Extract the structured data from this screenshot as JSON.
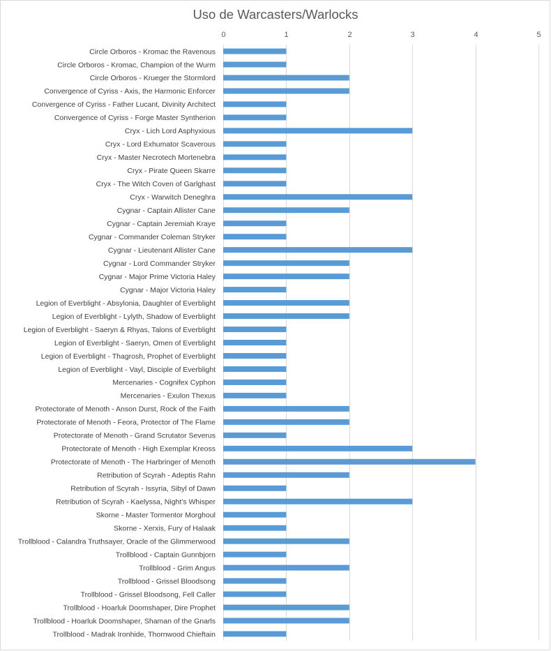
{
  "chart_data": {
    "type": "bar",
    "orientation": "horizontal",
    "title": "Uso de Warcasters/Warlocks",
    "xlabel": "",
    "ylabel": "",
    "xlim": [
      0,
      5
    ],
    "xticks": [
      "0",
      "1",
      "2",
      "3",
      "4",
      "5"
    ],
    "grid": true,
    "color": "#5b9bd5",
    "categories": [
      "Circle Orboros - Kromac the Ravenous",
      "Circle Orboros - Kromac, Champion of the Wurm",
      "Circle Orboros - Krueger the Stormlord",
      "Convergence of Cyriss - Axis, the Harmonic Enforcer",
      "Convergence of Cyriss - Father Lucant, Divinity Architect",
      "Convergence of Cyriss - Forge Master Syntherion",
      "Cryx - Lich Lord Asphyxious",
      "Cryx - Lord Exhumator Scaverous",
      "Cryx - Master Necrotech Mortenebra",
      "Cryx - Pirate Queen Skarre",
      "Cryx - The Witch Coven of Garlghast",
      "Cryx - Warwitch Deneghra",
      "Cygnar - Captain Allister Cane",
      "Cygnar - Captain Jeremiah Kraye",
      "Cygnar - Commander Coleman Stryker",
      "Cygnar - Lieutenant Allister Cane",
      "Cygnar - Lord Commander Stryker",
      "Cygnar - Major Prime Victoria Haley",
      "Cygnar - Major Victoria Haley",
      "Legion of Everblight - Absylonia, Daughter of Everblight",
      "Legion of Everblight - Lylyth, Shadow of Everblight",
      "Legion of Everblight - Saeryn & Rhyas, Talons of Everblight",
      "Legion of Everblight - Saeryn, Omen of Everblight",
      "Legion of Everblight - Thagrosh, Prophet of Everblight",
      "Legion of Everblight - Vayl, Disciple of Everblight",
      "Mercenaries - Cognifex Cyphon",
      "Mercenaries - Exulon Thexus",
      "Protectorate of Menoth - Anson Durst, Rock of the Faith",
      "Protectorate of Menoth - Feora, Protector of The Flame",
      "Protectorate of Menoth - Grand Scrutator Severus",
      "Protectorate of Menoth - High Exemplar Kreoss",
      "Protectorate of Menoth - The Harbringer of Menoth",
      "Retribution of Scyrah - Adeptis Rahn",
      "Retribution of Scyrah - Issyria, Sibyl of Dawn",
      "Retribution of Scyrah - Kaelyssa, Night's Whisper",
      "Skorne - Master Tormentor Morghoul",
      "Skorne - Xerxis, Fury of Halaak",
      "Trollblood - Calandra Truthsayer, Oracle of the Glimmerwood",
      "Trollblood - Captain Gunnbjorn",
      "Trollblood - Grim Angus",
      "Trollblood - Grissel Bloodsong",
      "Trollblood - Grissel Bloodsong, Fell Caller",
      "Trollblood - Hoarluk Doomshaper, Dire Prophet",
      "Trollblood - Hoarluk Doomshaper, Shaman of the Gnarls",
      "Trollblood - Madrak Ironhide, Thornwood Chieftain"
    ],
    "values": [
      1,
      1,
      2,
      2,
      1,
      1,
      3,
      1,
      1,
      1,
      1,
      3,
      2,
      1,
      1,
      3,
      2,
      2,
      1,
      2,
      2,
      1,
      1,
      1,
      1,
      1,
      1,
      2,
      2,
      1,
      3,
      4,
      2,
      1,
      3,
      1,
      1,
      2,
      1,
      2,
      1,
      1,
      2,
      2,
      1
    ]
  }
}
